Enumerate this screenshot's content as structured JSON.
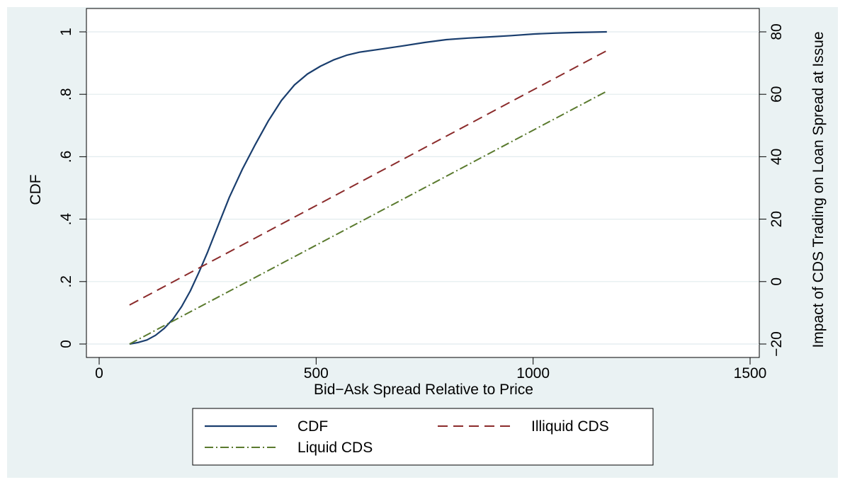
{
  "chart_data": {
    "type": "line",
    "title": "",
    "xlabel": "Bid−Ask Spread Relative to Price",
    "ylabel": "CDF",
    "y2label": "Impact of CDS Trading on Loan Spread at Issue",
    "xlim": [
      0,
      1500
    ],
    "ylim": [
      0,
      1
    ],
    "y2lim": [
      -20,
      80
    ],
    "xticks": [
      "0",
      "500",
      "1000",
      "1500"
    ],
    "yticks": [
      "0",
      ".2",
      ".4",
      ".6",
      ".8",
      "1"
    ],
    "y2ticks": [
      "−20",
      "0",
      "20",
      "40",
      "60",
      "80"
    ],
    "grid": true,
    "legend_position": "bottom",
    "series": [
      {
        "name": "CDF",
        "axis": "left",
        "color": "#1a3e6e",
        "style": "solid",
        "x": [
          70,
          90,
          110,
          130,
          150,
          170,
          190,
          210,
          230,
          250,
          270,
          300,
          330,
          360,
          390,
          420,
          450,
          480,
          510,
          540,
          570,
          600,
          650,
          700,
          750,
          800,
          850,
          900,
          950,
          1000,
          1050,
          1100,
          1170
        ],
        "y": [
          0.0,
          0.005,
          0.013,
          0.028,
          0.05,
          0.08,
          0.12,
          0.17,
          0.23,
          0.295,
          0.365,
          0.47,
          0.56,
          0.64,
          0.715,
          0.78,
          0.83,
          0.865,
          0.89,
          0.91,
          0.925,
          0.935,
          0.945,
          0.955,
          0.966,
          0.975,
          0.98,
          0.984,
          0.988,
          0.993,
          0.996,
          0.998,
          1.0
        ]
      },
      {
        "name": "Illiquid CDS",
        "axis": "right",
        "color": "#8b2b2b",
        "style": "dashed",
        "x": [
          70,
          1170
        ],
        "y": [
          -7.5,
          74
        ]
      },
      {
        "name": "Liquid CDS",
        "axis": "right",
        "color": "#5a7a2e",
        "style": "dashdot",
        "x": [
          70,
          1170
        ],
        "y": [
          -20,
          61
        ]
      }
    ]
  }
}
